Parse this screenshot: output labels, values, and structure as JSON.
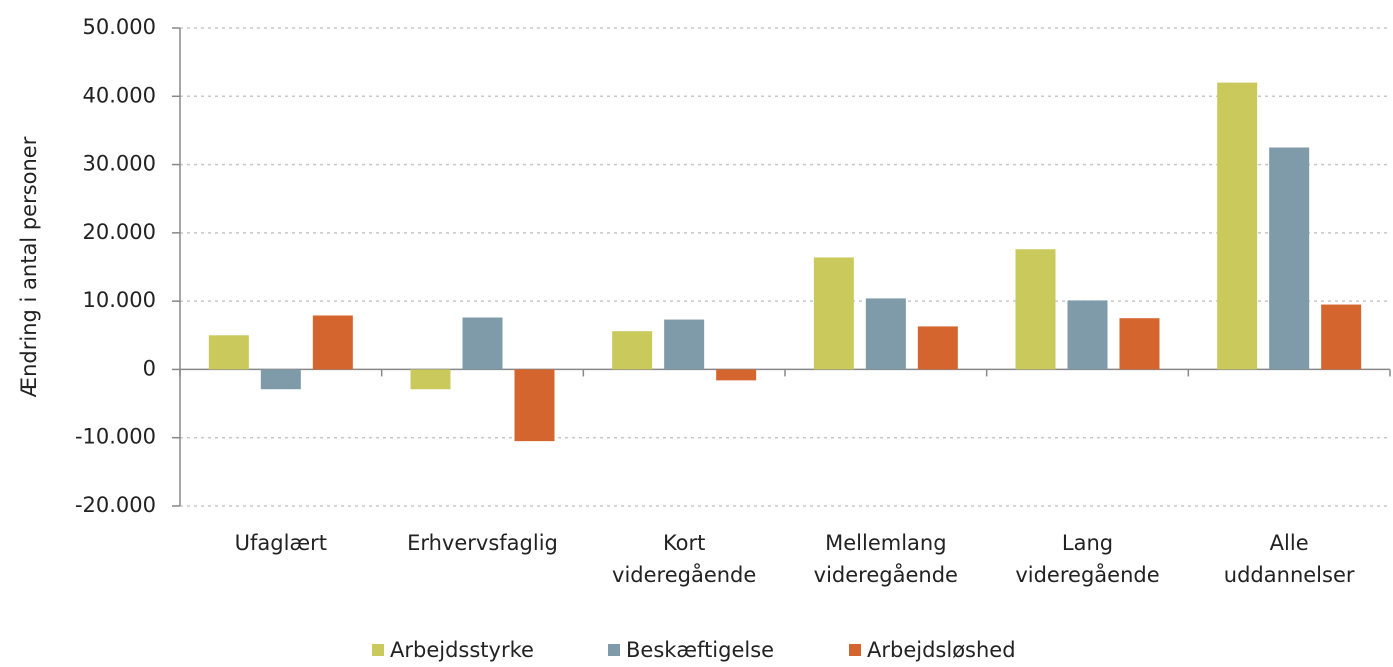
{
  "chart_data": {
    "type": "bar",
    "y_label": "Ændring i antal personer",
    "categories": [
      "Ufaglært",
      "Erhvervsfaglig",
      "Kort videregående",
      "Mellemlang videregående",
      "Lang videregående",
      "Alle uddannelser"
    ],
    "series": [
      {
        "name": "Arbejdsstyrke",
        "color": "#c9c95c",
        "values": [
          5000,
          -2900,
          5600,
          16400,
          17600,
          42000
        ]
      },
      {
        "name": "Beskæftigelse",
        "color": "#7f9aa8",
        "values": [
          -2900,
          7600,
          7300,
          10400,
          10100,
          32500
        ]
      },
      {
        "name": "Arbejdsløshed",
        "color": "#d5652f",
        "values": [
          7900,
          -10500,
          -1600,
          6300,
          7500,
          9500
        ]
      }
    ],
    "ylim": [
      -20000,
      50000
    ],
    "yticks": [
      {
        "value": -20000,
        "label": "-20.000"
      },
      {
        "value": -10000,
        "label": "-10.000"
      },
      0,
      {
        "value": 10000,
        "label": "10.000"
      },
      {
        "value": 20000,
        "label": "20.000"
      },
      {
        "value": 30000,
        "label": "30.000"
      },
      {
        "value": 40000,
        "label": "40.000"
      },
      {
        "value": 50000,
        "label": "50.000"
      }
    ],
    "grid": true,
    "legend": "bottom"
  }
}
